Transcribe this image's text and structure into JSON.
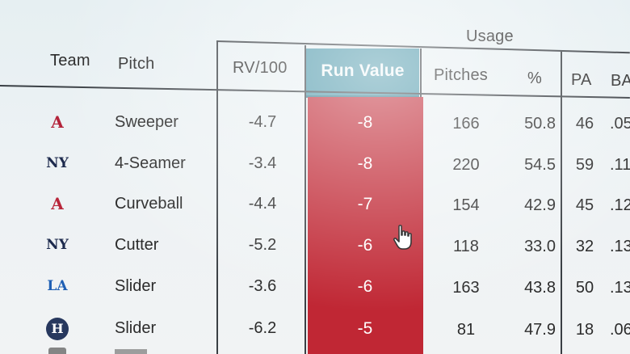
{
  "headers": {
    "group_usage": "Usage",
    "team": "Team",
    "pitch": "Pitch",
    "rv100": "RV/100",
    "run_value": "Run Value",
    "pitches": "Pitches",
    "pct": "%",
    "pa": "PA",
    "ba": "BA"
  },
  "rows": [
    {
      "logo": "angels-logo",
      "logo_text": "A",
      "logo_color": "#b3233a",
      "pitch": "Sweeper",
      "rv100": "-4.7",
      "run_value": "-8",
      "pitches": "166",
      "pct": "50.8",
      "pa": "46",
      "ba": ".05"
    },
    {
      "logo": "yankees-logo",
      "logo_text": "NY",
      "logo_color": "#1d2a4d",
      "pitch": "4-Seamer",
      "rv100": "-3.4",
      "run_value": "-8",
      "pitches": "220",
      "pct": "54.5",
      "pa": "59",
      "ba": ".11"
    },
    {
      "logo": "braves-logo",
      "logo_text": "A",
      "logo_color": "#b8263a",
      "pitch": "Curveball",
      "rv100": "-4.4",
      "run_value": "-7",
      "pitches": "154",
      "pct": "42.9",
      "pa": "45",
      "ba": ".12"
    },
    {
      "logo": "yankees-logo",
      "logo_text": "NY",
      "logo_color": "#1d2a4d",
      "pitch": "Cutter",
      "rv100": "-5.2",
      "run_value": "-6",
      "pitches": "118",
      "pct": "33.0",
      "pa": "32",
      "ba": ".13"
    },
    {
      "logo": "dodgers-logo",
      "logo_text": "LA",
      "logo_color": "#1f5fb4",
      "pitch": "Slider",
      "rv100": "-3.6",
      "run_value": "-6",
      "pitches": "163",
      "pct": "43.8",
      "pa": "50",
      "ba": ".13"
    },
    {
      "logo": "astros-logo",
      "logo_text": "H",
      "logo_color": "#27385e",
      "pitch": "Slider",
      "rv100": "-6.2",
      "run_value": "-5",
      "pitches": "81",
      "pct": "47.9",
      "pa": "18",
      "ba": ".06"
    }
  ],
  "colors": {
    "run_value_header": "#4a96a9",
    "run_value_column": "#c02734"
  }
}
